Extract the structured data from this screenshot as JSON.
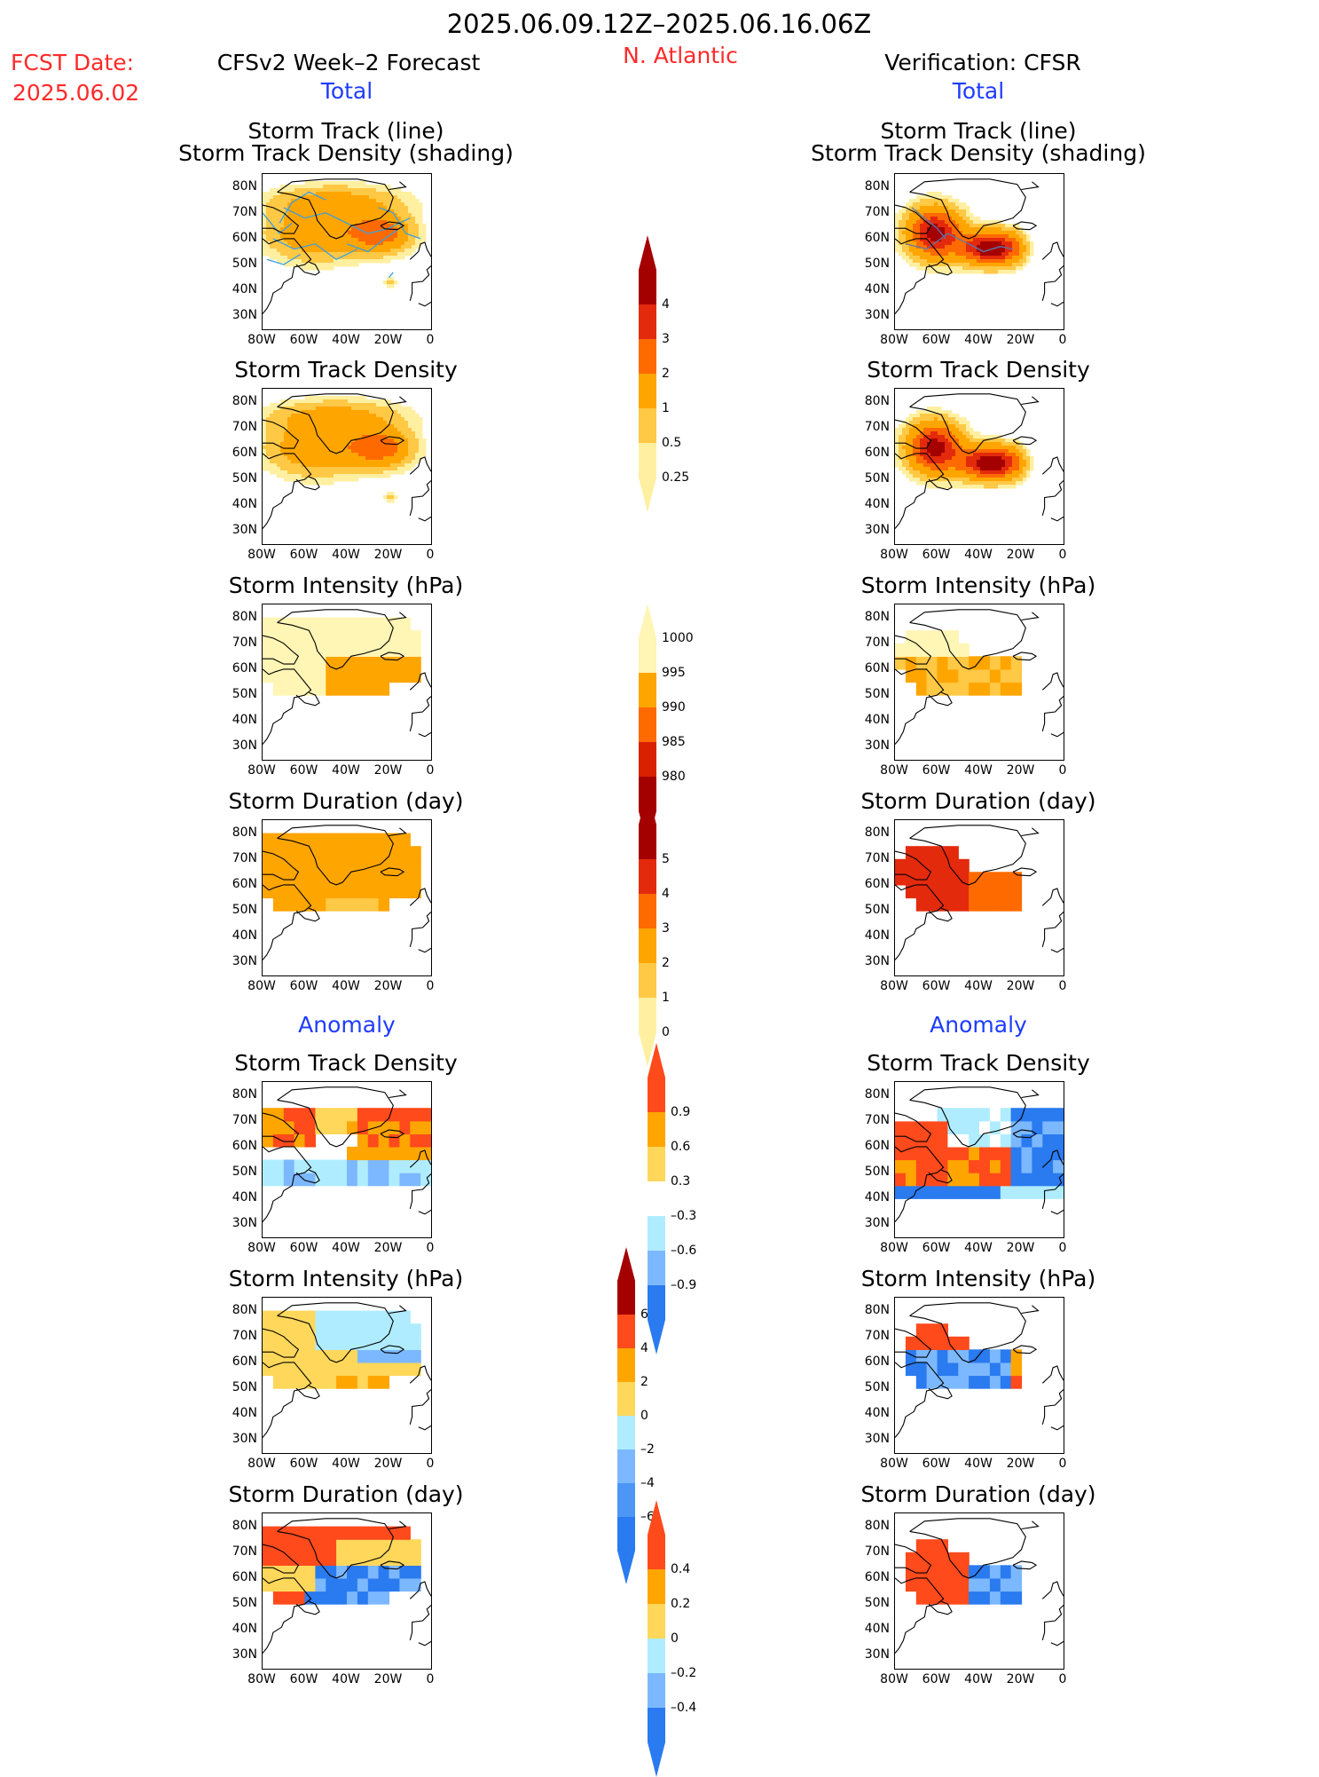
{
  "header": {
    "period": "2025.06.09.12Z–2025.06.16.06Z",
    "fcst_label": "FCST Date:",
    "fcst_date": "2025.06.02",
    "left_title": "CFSv2 Week–2 Forecast",
    "region": "N. Atlantic",
    "right_title": "Verification: CFSR",
    "total_label": "Total",
    "anomaly_label": "Anomaly"
  },
  "panels": {
    "track_line": "Storm Track (line)",
    "track_density_shading": "Storm Track Density (shading)",
    "track_density": "Storm Track Density",
    "intensity": "Storm Intensity (hPa)",
    "duration": "Storm Duration (day)"
  },
  "axes": {
    "lat_ticks": [
      "80N",
      "70N",
      "60N",
      "50N",
      "40N",
      "30N"
    ],
    "lon_ticks": [
      "80W",
      "60W",
      "40W",
      "20W",
      "0"
    ]
  },
  "colorbars": {
    "density": {
      "labels": [
        "4",
        "3",
        "2",
        "1",
        "0.5",
        "0.25"
      ],
      "colors": [
        "#a50000",
        "#e42a0c",
        "#ff6a00",
        "#ffa500",
        "#ffc845",
        "#ffefa0"
      ]
    },
    "intensity": {
      "labels": [
        "1000",
        "995",
        "990",
        "985",
        "980"
      ],
      "colors": [
        "#fff5b4",
        "#ffa500",
        "#ff6a00",
        "#d92100",
        "#a50000"
      ]
    },
    "duration": {
      "labels": [
        "5",
        "4",
        "3",
        "2",
        "1",
        "0"
      ],
      "colors": [
        "#a50000",
        "#e42a0c",
        "#ff6a00",
        "#ffa500",
        "#ffc845",
        "#ffefa0"
      ]
    },
    "anom_density": {
      "labels": [
        "0.9",
        "0.6",
        "0.3",
        "–0.3",
        "–0.6",
        "–0.9"
      ],
      "colors": [
        "#ff4a1c",
        "#ffa500",
        "#ffd75a",
        "#ffffff",
        "#b0ecff",
        "#7cb8ff",
        "#2a7af0"
      ]
    },
    "anom_intensity": {
      "labels": [
        "6",
        "4",
        "2",
        "0",
        "–2",
        "–4",
        "–6"
      ],
      "colors": [
        "#a50000",
        "#ff4a1c",
        "#ffa500",
        "#ffd75a",
        "#b0ecff",
        "#7cb8ff",
        "#4c96f5",
        "#2a7af0"
      ]
    },
    "anom_duration": {
      "labels": [
        "0.4",
        "0.2",
        "0",
        "–0.2",
        "–0.4"
      ],
      "colors": [
        "#ff4a1c",
        "#ffa500",
        "#ffd75a",
        "#b0ecff",
        "#7cb8ff",
        "#2a7af0"
      ]
    }
  }
}
